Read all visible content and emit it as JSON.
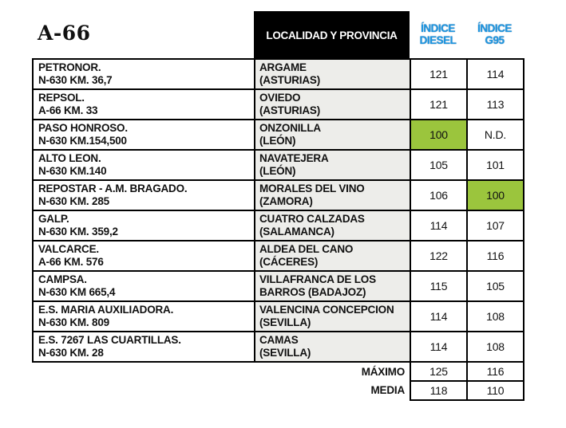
{
  "title": "A-66",
  "headers": {
    "locality": "LOCALIDAD Y PROVINCIA",
    "diesel": [
      "ÍNDICE",
      "DIESEL"
    ],
    "g95": [
      "ÍNDICE",
      "G95"
    ]
  },
  "colors": {
    "highlight": "#9bc53d",
    "header_bg": "#000000",
    "header_index_text": "#1e96e0",
    "locality_bg": "#ededea"
  },
  "rows": [
    {
      "name": [
        "PETRONOR.",
        "N-630 KM. 36,7"
      ],
      "loc": [
        "ARGAME",
        "(ASTURIAS)"
      ],
      "diesel": "121",
      "g95": "114"
    },
    {
      "name": [
        "REPSOL.",
        "A-66 KM. 33"
      ],
      "loc": [
        "OVIEDO",
        "(ASTURIAS)"
      ],
      "diesel": "121",
      "g95": "113"
    },
    {
      "name": [
        "PASO HONROSO.",
        "N-630 KM.154,500"
      ],
      "loc": [
        "ONZONILLA",
        "(LEÓN)"
      ],
      "diesel": "100",
      "g95": "N.D.",
      "highlight": "diesel"
    },
    {
      "name": [
        "ALTO LEON.",
        "N-630 KM.140"
      ],
      "loc": [
        "NAVATEJERA",
        "(LEÓN)"
      ],
      "diesel": "105",
      "g95": "101"
    },
    {
      "name": [
        "REPOSTAR - A.M. BRAGADO.",
        "N-630 KM. 285"
      ],
      "loc": [
        "MORALES DEL VINO",
        "(ZAMORA)"
      ],
      "diesel": "106",
      "g95": "100",
      "highlight": "g95"
    },
    {
      "name": [
        "GALP.",
        "N-630 KM. 359,2"
      ],
      "loc": [
        "CUATRO CALZADAS",
        "(SALAMANCA)"
      ],
      "diesel": "114",
      "g95": "107"
    },
    {
      "name": [
        "VALCARCE.",
        "A-66 KM. 576"
      ],
      "loc": [
        "ALDEA DEL CANO",
        "(CÁCERES)"
      ],
      "diesel": "122",
      "g95": "116"
    },
    {
      "name": [
        "CAMPSA.",
        "N-630 KM 665,4"
      ],
      "loc": [
        "VILLAFRANCA DE LOS",
        "BARROS  (BADAJOZ)"
      ],
      "diesel": "115",
      "g95": "105"
    },
    {
      "name": [
        "E.S. MARIA AUXILIADORA.",
        "N-630 KM. 809"
      ],
      "loc": [
        "VALENCINA CONCEPCION",
        "(SEVILLA)"
      ],
      "diesel": "114",
      "g95": "108"
    },
    {
      "name": [
        "E.S. 7267  LAS CUARTILLAS.",
        "N-630 KM. 28"
      ],
      "loc": [
        "CAMAS",
        "(SEVILLA)"
      ],
      "diesel": "114",
      "g95": "108"
    }
  ],
  "summary": [
    {
      "label": "MÁXIMO",
      "diesel": "125",
      "g95": "116"
    },
    {
      "label": "MEDIA",
      "diesel": "118",
      "g95": "110"
    }
  ]
}
